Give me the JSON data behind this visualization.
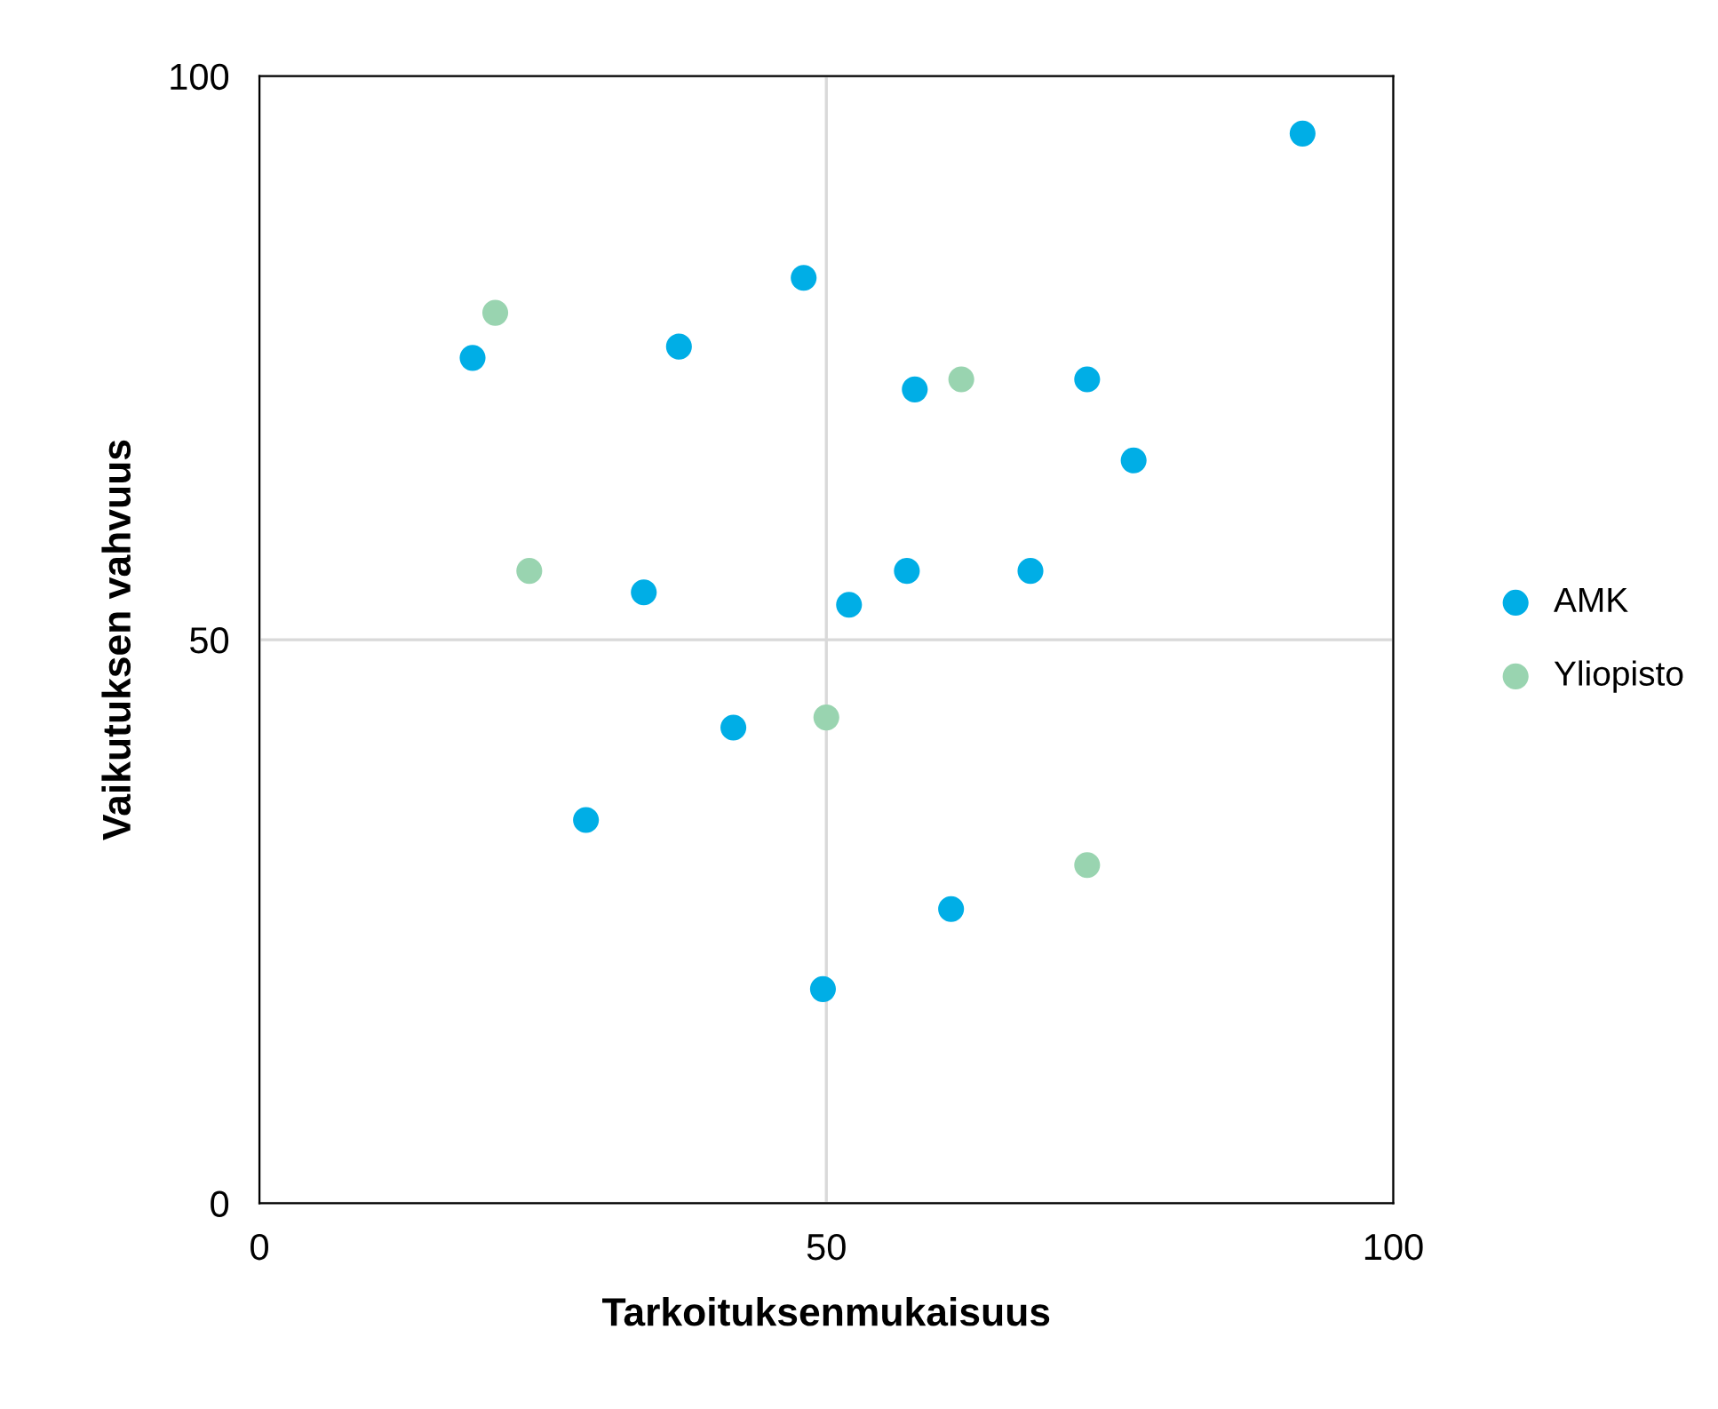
{
  "chart_data": {
    "type": "scatter",
    "xlabel": "Tarkoituksenmukaisuus",
    "ylabel": "Vaikutuksen vahvuus",
    "xlim": [
      0,
      100
    ],
    "ylim": [
      0,
      100
    ],
    "xticks": [
      0,
      50,
      100
    ],
    "yticks": [
      0,
      50,
      100
    ],
    "grid": true,
    "legend": "right",
    "marker": "circle",
    "series": [
      {
        "name": "AMK",
        "color": "#00aee6",
        "x": [
          92,
          48,
          18.8,
          37,
          57.8,
          73,
          77.1,
          33.9,
          52,
          57.1,
          68,
          41.8,
          28.8,
          61,
          49.7
        ],
        "values": [
          94.9,
          82.1,
          75,
          76,
          72.2,
          73.1,
          65.9,
          54.2,
          53.1,
          56.1,
          56.1,
          42.2,
          34,
          26.1,
          19
        ]
      },
      {
        "name": "Yliopisto",
        "color": "#99d4b0",
        "x": [
          20.8,
          23.8,
          61.9,
          50,
          73
        ],
        "values": [
          79,
          56.1,
          73.1,
          43.1,
          30
        ]
      }
    ]
  }
}
